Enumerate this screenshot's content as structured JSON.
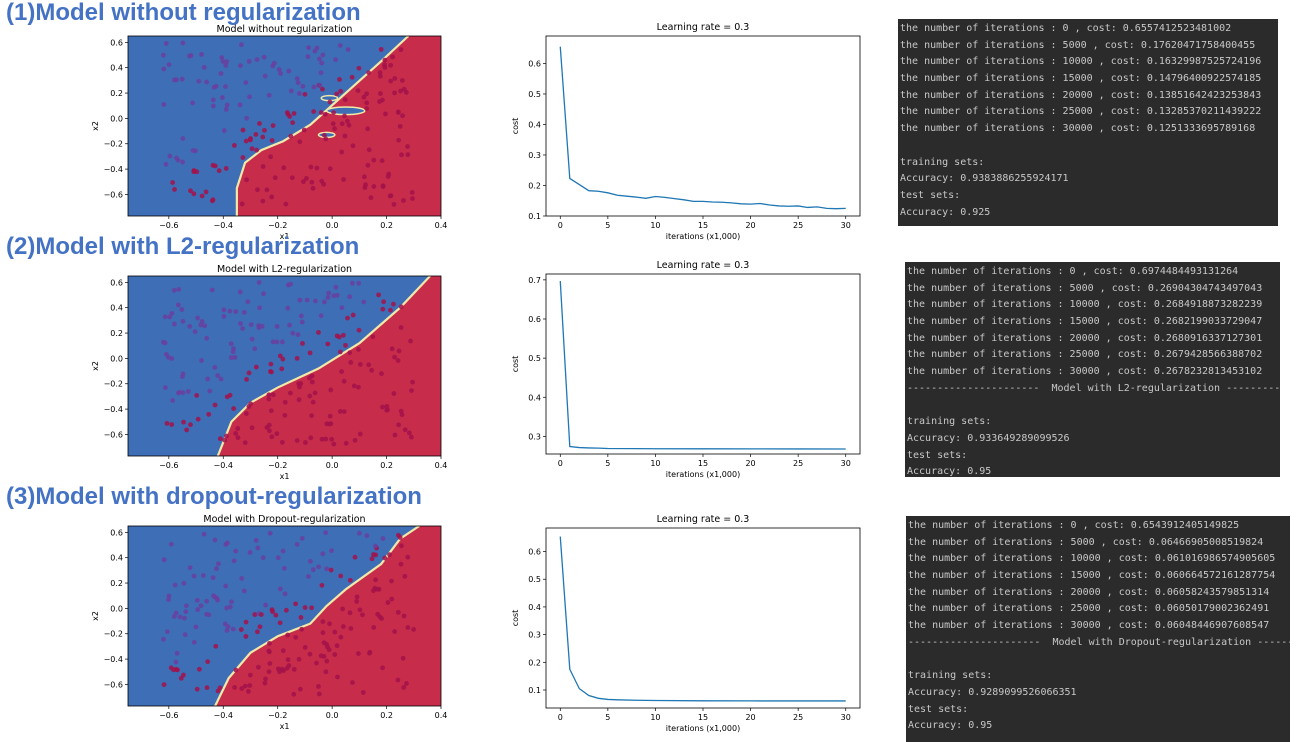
{
  "sections": [
    {
      "heading": "(1)Model without regularization",
      "boundary_chart": {
        "type": "scatter",
        "title": "Model without regularization",
        "xlabel": "x1",
        "ylabel": "x2",
        "xlim": [
          -0.75,
          0.4
        ],
        "ylim": [
          -0.77,
          0.65
        ],
        "xticks": [
          -0.6,
          -0.4,
          -0.2,
          0.0,
          0.2,
          0.4
        ],
        "xtick_labels": [
          "−0.6",
          "−0.4",
          "−0.2",
          "0.0",
          "0.2",
          "0.4"
        ],
        "yticks": [
          0.6,
          0.4,
          0.2,
          0.0,
          -0.2,
          -0.4,
          -0.6
        ],
        "ytick_labels": [
          "0.6",
          "0.4",
          "0.2",
          "0.0",
          "−0.2",
          "−0.4",
          "−0.6"
        ],
        "colors": {
          "blue_region": "#3d6eb6",
          "red_region": "#c72c4b",
          "blue_point": "#6a3fa0",
          "red_point": "#a3124a",
          "edge": "#f2e9a8"
        },
        "boundary": [
          [
            -0.35,
            -0.77
          ],
          [
            -0.35,
            -0.55
          ],
          [
            -0.32,
            -0.35
          ],
          [
            -0.26,
            -0.25
          ],
          [
            -0.18,
            -0.18
          ],
          [
            -0.08,
            -0.05
          ],
          [
            0.05,
            0.2
          ],
          [
            0.18,
            0.45
          ],
          [
            0.28,
            0.65
          ]
        ],
        "islands": [
          {
            "cx": 0.05,
            "cy": 0.06,
            "rx": 0.07,
            "ry": 0.03
          },
          {
            "cx": -0.01,
            "cy": 0.16,
            "rx": 0.03,
            "ry": 0.02
          },
          {
            "cx": -0.02,
            "cy": -0.13,
            "rx": 0.03,
            "ry": 0.02
          }
        ]
      },
      "cost_chart": {
        "type": "line",
        "title": "Learning rate = 0.3",
        "xlabel": "iterations (x1,000)",
        "ylabel": "cost",
        "xlim": [
          -1.5,
          31.5
        ],
        "ylim": [
          0.1,
          0.69
        ],
        "xticks": [
          0,
          5,
          10,
          15,
          20,
          25,
          30
        ],
        "yticks": [
          0.1,
          0.2,
          0.3,
          0.4,
          0.5,
          0.6
        ],
        "ytick_labels": [
          "0.1",
          "0.2",
          "0.3",
          "0.4",
          "0.5",
          "0.6"
        ],
        "x": [
          0,
          1,
          2,
          3,
          4,
          5,
          6,
          7,
          8,
          9,
          10,
          11,
          12,
          13,
          14,
          15,
          16,
          17,
          18,
          19,
          20,
          21,
          22,
          23,
          24,
          25,
          26,
          27,
          28,
          29,
          30
        ],
        "values": [
          0.655,
          0.223,
          0.203,
          0.183,
          0.181,
          0.176,
          0.168,
          0.165,
          0.162,
          0.158,
          0.164,
          0.161,
          0.157,
          0.153,
          0.148,
          0.148,
          0.146,
          0.145,
          0.143,
          0.14,
          0.139,
          0.141,
          0.136,
          0.133,
          0.132,
          0.133,
          0.128,
          0.13,
          0.125,
          0.124,
          0.125
        ],
        "line_color": "#1f77b4"
      },
      "console": {
        "lines": [
          "the number of iterations : 0 , cost: 0.6557412523481002",
          "the number of iterations : 5000 , cost: 0.17620471758400455",
          "the number of iterations : 10000 , cost: 0.16329987525724196",
          "the number of iterations : 15000 , cost: 0.14796400922574185",
          "the number of iterations : 20000 , cost: 0.13851642423253843",
          "the number of iterations : 25000 , cost: 0.13285370211439222",
          "the number of iterations : 30000 , cost: 0.1251333695789168",
          "",
          "training sets:",
          "Accuracy: 0.9383886255924171",
          "test sets:",
          "Accuracy: 0.925"
        ]
      }
    },
    {
      "heading": "(2)Model with L2-regularization",
      "boundary_chart": {
        "type": "scatter",
        "title": "Model with L2-regularization",
        "xlabel": "x1",
        "ylabel": "x2",
        "xlim": [
          -0.75,
          0.4
        ],
        "ylim": [
          -0.77,
          0.65
        ],
        "xticks": [
          -0.6,
          -0.4,
          -0.2,
          0.0,
          0.2,
          0.4
        ],
        "xtick_labels": [
          "−0.6",
          "−0.4",
          "−0.2",
          "0.0",
          "0.2",
          "0.4"
        ],
        "yticks": [
          0.6,
          0.4,
          0.2,
          0.0,
          -0.2,
          -0.4,
          -0.6
        ],
        "ytick_labels": [
          "0.6",
          "0.4",
          "0.2",
          "0.0",
          "−0.2",
          "−0.4",
          "−0.6"
        ],
        "colors": {
          "blue_region": "#3d6eb6",
          "red_region": "#c72c4b",
          "blue_point": "#6a3fa0",
          "red_point": "#a3124a",
          "edge": "#f2e9a8"
        },
        "boundary": [
          [
            -0.42,
            -0.77
          ],
          [
            -0.37,
            -0.5
          ],
          [
            -0.3,
            -0.35
          ],
          [
            -0.2,
            -0.23
          ],
          [
            -0.05,
            -0.08
          ],
          [
            0.1,
            0.12
          ],
          [
            0.25,
            0.4
          ],
          [
            0.36,
            0.65
          ]
        ],
        "islands": []
      },
      "cost_chart": {
        "type": "line",
        "title": "Learning rate = 0.3",
        "xlabel": "iterations (x1,000)",
        "ylabel": "cost",
        "xlim": [
          -1.5,
          31.5
        ],
        "ylim": [
          0.255,
          0.715
        ],
        "xticks": [
          0,
          5,
          10,
          15,
          20,
          25,
          30
        ],
        "yticks": [
          0.3,
          0.4,
          0.5,
          0.6,
          0.7
        ],
        "ytick_labels": [
          "0.3",
          "0.4",
          "0.5",
          "0.6",
          "0.7"
        ],
        "x": [
          0,
          1,
          2,
          3,
          4,
          5,
          10,
          15,
          20,
          25,
          30
        ],
        "values": [
          0.697,
          0.274,
          0.2715,
          0.2705,
          0.27,
          0.269,
          0.2685,
          0.2682,
          0.2681,
          0.2679,
          0.2678
        ],
        "line_color": "#1f77b4"
      },
      "console": {
        "lines": [
          "the number of iterations : 0 , cost: 0.6974484493131264",
          "the number of iterations : 5000 , cost: 0.26904304743497043",
          "the number of iterations : 10000 , cost: 0.2684918873282239",
          "the number of iterations : 15000 , cost: 0.2682199033729047",
          "the number of iterations : 20000 , cost: 0.2680916337127301",
          "the number of iterations : 25000 , cost: 0.2679428566388702",
          "the number of iterations : 30000 , cost: 0.2678232813453102",
          "----------------------  Model with L2-regularization ------------",
          "",
          "training sets:",
          "Accuracy: 0.933649289099526",
          "test sets:",
          "Accuracy: 0.95"
        ]
      }
    },
    {
      "heading": "(3)Model with dropout-regularization",
      "boundary_chart": {
        "type": "scatter",
        "title": "Model with Dropout-regularization",
        "xlabel": "x1",
        "ylabel": "x2",
        "xlim": [
          -0.75,
          0.4
        ],
        "ylim": [
          -0.77,
          0.65
        ],
        "xticks": [
          -0.6,
          -0.4,
          -0.2,
          0.0,
          0.2,
          0.4
        ],
        "xtick_labels": [
          "−0.6",
          "−0.4",
          "−0.2",
          "0.0",
          "0.2",
          "0.4"
        ],
        "yticks": [
          0.6,
          0.4,
          0.2,
          0.0,
          -0.2,
          -0.4,
          -0.6
        ],
        "ytick_labels": [
          "0.6",
          "0.4",
          "0.2",
          "0.0",
          "−0.2",
          "−0.4",
          "−0.6"
        ],
        "colors": {
          "blue_region": "#3d6eb6",
          "red_region": "#c72c4b",
          "blue_point": "#6a3fa0",
          "red_point": "#a3124a",
          "edge": "#f2e9a8"
        },
        "boundary": [
          [
            -0.43,
            -0.77
          ],
          [
            -0.38,
            -0.55
          ],
          [
            -0.3,
            -0.35
          ],
          [
            -0.2,
            -0.22
          ],
          [
            -0.08,
            -0.12
          ],
          [
            -0.02,
            0.02
          ],
          [
            0.05,
            0.15
          ],
          [
            0.18,
            0.35
          ],
          [
            0.25,
            0.55
          ],
          [
            0.32,
            0.65
          ]
        ],
        "islands": []
      },
      "cost_chart": {
        "type": "line",
        "title": "Learning rate = 0.3",
        "xlabel": "iterations (x1,000)",
        "ylabel": "cost",
        "xlim": [
          -1.5,
          31.5
        ],
        "ylim": [
          0.035,
          0.685
        ],
        "xticks": [
          0,
          5,
          10,
          15,
          20,
          25,
          30
        ],
        "yticks": [
          0.1,
          0.2,
          0.3,
          0.4,
          0.5,
          0.6
        ],
        "ytick_labels": [
          "0.1",
          "0.2",
          "0.3",
          "0.4",
          "0.5",
          "0.6"
        ],
        "x": [
          0,
          1,
          2,
          3,
          4,
          5,
          6,
          8,
          10,
          15,
          20,
          25,
          30
        ],
        "values": [
          0.654,
          0.175,
          0.105,
          0.08,
          0.07,
          0.066,
          0.0645,
          0.063,
          0.062,
          0.061,
          0.0606,
          0.0605,
          0.0605
        ],
        "line_color": "#1f77b4"
      },
      "console": {
        "lines": [
          "the number of iterations : 0 , cost: 0.6543912405149825",
          "the number of iterations : 5000 , cost: 0.06466905008519824",
          "the number of iterations : 10000 , cost: 0.061016986574905605",
          "the number of iterations : 15000 , cost: 0.060664572161287754",
          "the number of iterations : 20000 , cost: 0.06058243579851314",
          "the number of iterations : 25000 , cost: 0.06050179002362491",
          "the number of iterations : 30000 , cost: 0.06048446907608547",
          "----------------------  Model with Dropout-regularization -------",
          "",
          "training sets:",
          "Accuracy: 0.9289099526066351",
          "test sets:",
          "Accuracy: 0.95"
        ]
      }
    }
  ]
}
